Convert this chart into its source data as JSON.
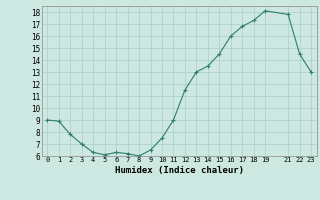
{
  "x": [
    0,
    1,
    2,
    3,
    4,
    5,
    6,
    7,
    8,
    9,
    10,
    11,
    12,
    13,
    14,
    15,
    16,
    17,
    18,
    19,
    21,
    22,
    23
  ],
  "y": [
    9.0,
    8.9,
    7.8,
    7.0,
    6.3,
    6.1,
    6.3,
    6.2,
    6.0,
    6.5,
    7.5,
    9.0,
    11.5,
    13.0,
    13.5,
    14.5,
    16.0,
    16.8,
    17.3,
    18.1,
    17.8,
    14.5,
    13.0
  ],
  "xlabel": "Humidex (Indice chaleur)",
  "line_color": "#2e7d6e",
  "marker": "+",
  "bg_color": "#cce8e0",
  "grid_color": "#aacfc8",
  "ylim": [
    6,
    18.5
  ],
  "xlim": [
    -0.5,
    23.5
  ],
  "yticks": [
    6,
    7,
    8,
    9,
    10,
    11,
    12,
    13,
    14,
    15,
    16,
    17,
    18
  ],
  "xticks": [
    0,
    1,
    2,
    3,
    4,
    5,
    6,
    7,
    8,
    9,
    10,
    11,
    12,
    13,
    14,
    15,
    16,
    17,
    18,
    19,
    21,
    22,
    23
  ]
}
